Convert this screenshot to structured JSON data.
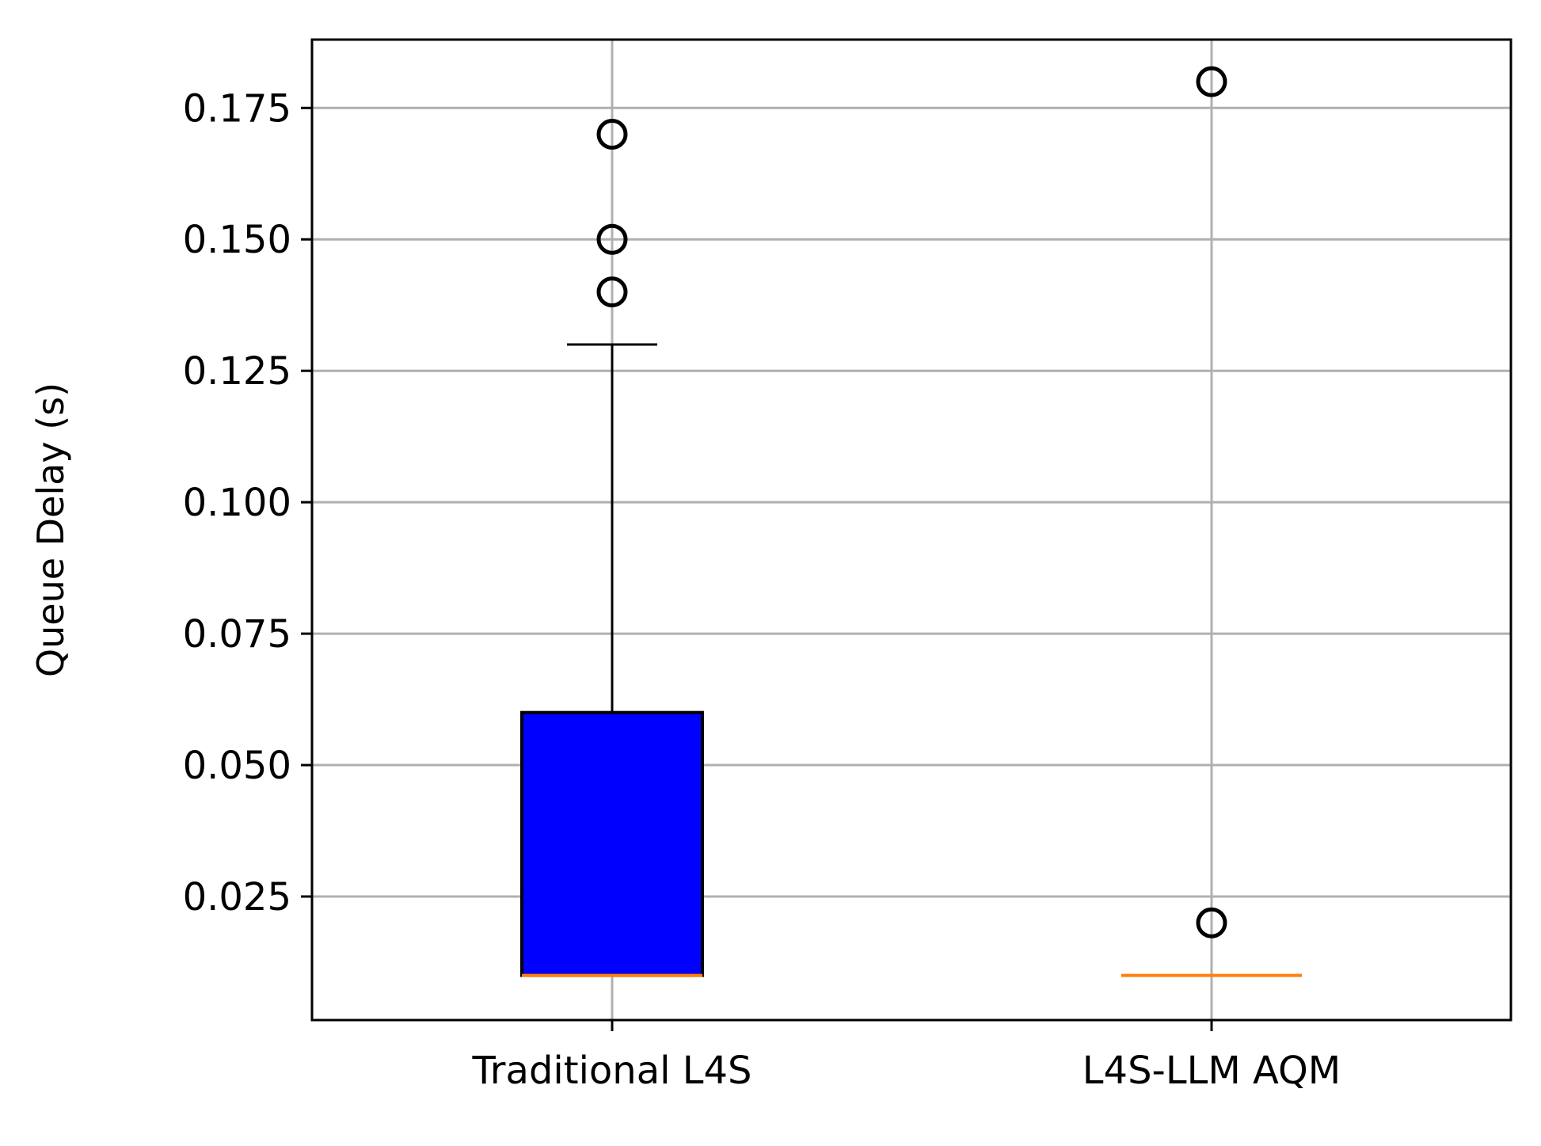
{
  "chart_data": {
    "type": "boxplot",
    "ylabel": "Queue Delay (s)",
    "ylim": [
      0.0015,
      0.188
    ],
    "yticks": [
      0.025,
      0.05,
      0.075,
      0.1,
      0.125,
      0.15,
      0.175
    ],
    "ytick_labels": [
      "0.025",
      "0.050",
      "0.075",
      "0.100",
      "0.125",
      "0.150",
      "0.175"
    ],
    "categories": [
      "Traditional L4S",
      "L4S-LLM AQM"
    ],
    "grid": true,
    "boxes": [
      {
        "name": "Traditional L4S",
        "q1": 0.01,
        "median": 0.01,
        "q3": 0.06,
        "whisker_low": 0.01,
        "whisker_high": 0.13,
        "outliers": [
          0.14,
          0.15,
          0.17
        ]
      },
      {
        "name": "L4S-LLM AQM",
        "q1": 0.01,
        "median": 0.01,
        "q3": 0.01,
        "whisker_low": 0.01,
        "whisker_high": 0.01,
        "outliers": [
          0.02,
          0.18
        ]
      }
    ],
    "colors": {
      "box_fill": "#0000ff",
      "box_edge": "#000000",
      "median": "#ff7f0e",
      "grid": "#b0b0b0",
      "outlier": "#000000"
    }
  }
}
